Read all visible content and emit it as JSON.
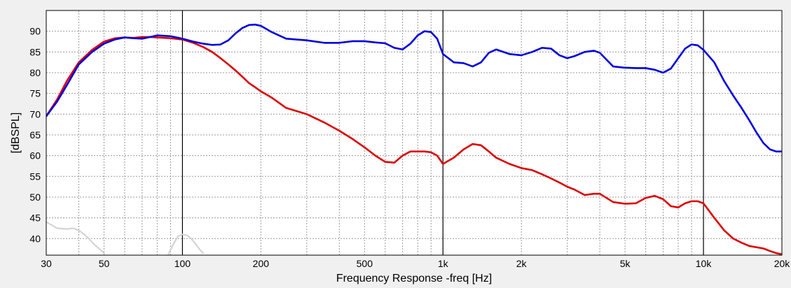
{
  "chart_data": {
    "type": "line",
    "xlabel": "Frequency Response -freq [Hz]",
    "ylabel": "[dBSPL]",
    "x_scale": "log",
    "xlim": [
      30,
      20000
    ],
    "ylim": [
      36,
      95
    ],
    "grid": true,
    "x_ticks": [
      {
        "value": 30,
        "label": "30"
      },
      {
        "value": 50,
        "label": "50"
      },
      {
        "value": 100,
        "label": "100"
      },
      {
        "value": 200,
        "label": "200"
      },
      {
        "value": 500,
        "label": "500"
      },
      {
        "value": 1000,
        "label": "1k"
      },
      {
        "value": 2000,
        "label": "2k"
      },
      {
        "value": 5000,
        "label": "5k"
      },
      {
        "value": 10000,
        "label": "10k"
      },
      {
        "value": 20000,
        "label": "20k"
      }
    ],
    "y_ticks": [
      {
        "value": 40,
        "label": "40"
      },
      {
        "value": 45,
        "label": "45"
      },
      {
        "value": 50,
        "label": "50"
      },
      {
        "value": 55,
        "label": "55"
      },
      {
        "value": 60,
        "label": "60"
      },
      {
        "value": 65,
        "label": "65"
      },
      {
        "value": 70,
        "label": "70"
      },
      {
        "value": 75,
        "label": "75"
      },
      {
        "value": 80,
        "label": "80"
      },
      {
        "value": 85,
        "label": "85"
      },
      {
        "value": 90,
        "label": "90"
      }
    ],
    "series": [
      {
        "color": "#0000dd",
        "x": [
          30,
          33,
          36,
          40,
          45,
          50,
          55,
          60,
          65,
          70,
          75,
          80,
          90,
          100,
          110,
          120,
          130,
          140,
          150,
          160,
          170,
          180,
          190,
          200,
          220,
          250,
          300,
          350,
          400,
          450,
          500,
          550,
          600,
          650,
          700,
          750,
          800,
          850,
          900,
          950,
          1000,
          1100,
          1200,
          1300,
          1400,
          1500,
          1600,
          1800,
          2000,
          2200,
          2400,
          2600,
          2800,
          3000,
          3200,
          3500,
          3800,
          4000,
          4500,
          5000,
          5500,
          6000,
          6500,
          7000,
          7500,
          8000,
          8500,
          9000,
          9500,
          10000,
          11000,
          12000,
          13000,
          14000,
          15000,
          16000,
          17000,
          18000,
          19000,
          20000
        ],
        "values": [
          69.5,
          73,
          77,
          82,
          85,
          87,
          88,
          88.5,
          88.3,
          88.2,
          88.6,
          89,
          88.8,
          88.2,
          87.5,
          87,
          86.7,
          86.8,
          87.8,
          89.5,
          90.8,
          91.5,
          91.6,
          91.3,
          89.8,
          88.2,
          87.8,
          87.2,
          87.2,
          87.6,
          87.6,
          87.3,
          87.1,
          86,
          85.6,
          87,
          89,
          90,
          89.8,
          88.2,
          84.5,
          82.5,
          82.3,
          81.5,
          82.5,
          84.8,
          85.6,
          84.5,
          84.2,
          85,
          86,
          85.8,
          84.2,
          83.5,
          84,
          85,
          85.3,
          84.8,
          81.5,
          81.2,
          81.1,
          81.1,
          80.7,
          80,
          81,
          83.5,
          85.8,
          86.8,
          86.6,
          85.5,
          82.5,
          78,
          74.5,
          71.5,
          68.5,
          65.5,
          63,
          61.5,
          61,
          61
        ]
      },
      {
        "color": "#dd0000",
        "x": [
          30,
          33,
          36,
          40,
          45,
          50,
          55,
          60,
          65,
          70,
          75,
          80,
          90,
          100,
          110,
          120,
          130,
          140,
          150,
          160,
          170,
          180,
          190,
          200,
          220,
          250,
          300,
          350,
          400,
          450,
          500,
          550,
          600,
          650,
          700,
          750,
          800,
          850,
          900,
          950,
          1000,
          1100,
          1200,
          1300,
          1400,
          1500,
          1600,
          1800,
          2000,
          2200,
          2400,
          2600,
          2800,
          3000,
          3200,
          3500,
          3800,
          4000,
          4500,
          5000,
          5500,
          6000,
          6500,
          7000,
          7500,
          8000,
          8500,
          9000,
          9500,
          10000,
          11000,
          12000,
          13000,
          14000,
          15000,
          16000,
          17000,
          18000,
          19000,
          20000
        ],
        "values": [
          69.5,
          73.5,
          78,
          82.5,
          85.5,
          87.5,
          88.3,
          88.5,
          88.4,
          88.6,
          88.6,
          88.5,
          88.3,
          88,
          87.2,
          86.2,
          85,
          83.5,
          82,
          80.5,
          79,
          77.5,
          76.5,
          75.5,
          74,
          71.5,
          70,
          68,
          66,
          64,
          62,
          60,
          58.5,
          58.3,
          60,
          61,
          61,
          61,
          60.8,
          60,
          58,
          59.5,
          61.5,
          62.8,
          62.5,
          61,
          59.5,
          58,
          57,
          56.5,
          55.5,
          54.5,
          53.5,
          52.5,
          51.8,
          50.5,
          50.8,
          50.8,
          48.8,
          48.4,
          48.5,
          49.8,
          50.3,
          49.5,
          47.8,
          47.5,
          48.5,
          49,
          49,
          48.5,
          45,
          42,
          40,
          39,
          38.2,
          37.9,
          37.6,
          37,
          36.5,
          36.2
        ]
      },
      {
        "color": "#d4d4d4",
        "x": [
          30,
          33,
          36,
          38,
          40,
          42,
          44,
          46,
          48,
          50
        ],
        "values": [
          44,
          42.5,
          42.3,
          42.5,
          42,
          41,
          39.8,
          38.5,
          37.5,
          36.5
        ]
      },
      {
        "color": "#d4d4d4",
        "x": [
          88,
          92,
          96,
          100,
          104,
          108,
          112,
          116,
          120
        ],
        "values": [
          36,
          38.5,
          40.5,
          41,
          40.8,
          40,
          38.8,
          37.5,
          36.5
        ]
      }
    ]
  }
}
